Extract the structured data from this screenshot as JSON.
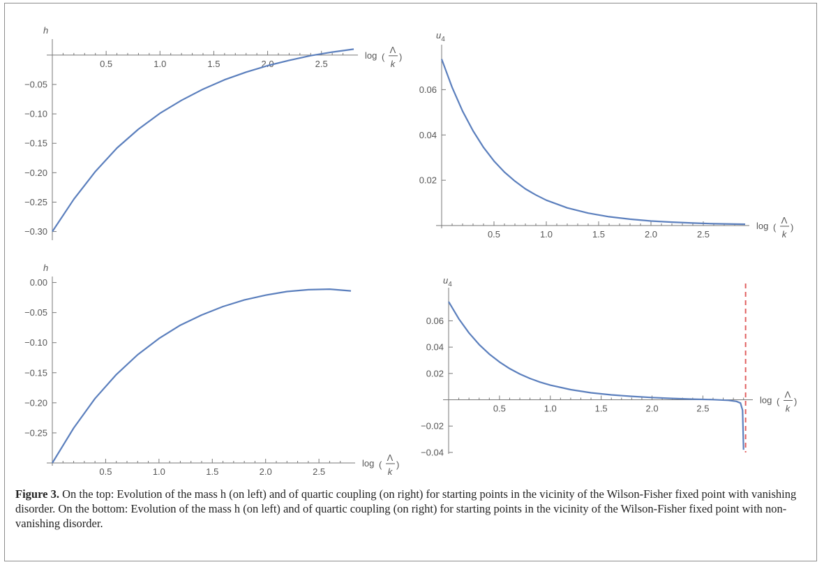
{
  "caption": {
    "label": "Figure 3.",
    "text": " On the top: Evolution of the mass h (on left) and of quartic coupling (on right) for starting points in the vicinity of the Wilson-Fisher fixed point with vanishing disorder. On the bottom: Evolution of the mass h (on left) and of quartic coupling (on right) for starting points in the vicinity of the Wilson-Fisher fixed point with non-vanishing disorder."
  },
  "colors": {
    "curve": "#5b7fbd",
    "divergence_line": "#e06060",
    "axis": "#777777"
  },
  "chart_data": [
    {
      "id": "top-left",
      "type": "line",
      "ylabel": "h",
      "xlabel_prefix": "log",
      "xlabel_num": "Λ",
      "xlabel_den": "k",
      "xlim": [
        0,
        2.8
      ],
      "ylim": [
        -0.31,
        0.02
      ],
      "x_axis_at": 0,
      "xticks": [
        0.5,
        1.0,
        1.5,
        2.0,
        2.5
      ],
      "xtick_labels": [
        "0.5",
        "1.0",
        "1.5",
        "2.0",
        "2.5"
      ],
      "yticks": [
        -0.05,
        -0.1,
        -0.15,
        -0.2,
        -0.25,
        -0.3
      ],
      "ytick_labels": [
        "−0.05",
        "−0.10",
        "−0.15",
        "−0.20",
        "−0.25",
        "−0.30"
      ],
      "series": [
        {
          "x": [
            0,
            0.2,
            0.4,
            0.6,
            0.8,
            1.0,
            1.2,
            1.4,
            1.6,
            1.8,
            2.0,
            2.2,
            2.4,
            2.6,
            2.8
          ],
          "y": [
            -0.3,
            -0.245,
            -0.198,
            -0.158,
            -0.126,
            -0.099,
            -0.077,
            -0.058,
            -0.042,
            -0.029,
            -0.018,
            -0.009,
            -0.001,
            0.005,
            0.01
          ]
        }
      ]
    },
    {
      "id": "top-right",
      "type": "line",
      "ylabel": "u4",
      "xlabel_prefix": "log",
      "xlabel_num": "Λ",
      "xlabel_den": "k",
      "xlim": [
        0,
        2.9
      ],
      "ylim": [
        0,
        0.078
      ],
      "x_axis_at": 0,
      "xticks": [
        0.5,
        1.0,
        1.5,
        2.0,
        2.5
      ],
      "xtick_labels": [
        "0.5",
        "1.0",
        "1.5",
        "2.0",
        "2.5"
      ],
      "yticks": [
        0.02,
        0.04,
        0.06
      ],
      "ytick_labels": [
        "0.02",
        "0.04",
        "0.06"
      ],
      "series": [
        {
          "x": [
            0,
            0.1,
            0.2,
            0.3,
            0.4,
            0.5,
            0.6,
            0.7,
            0.8,
            0.9,
            1.0,
            1.2,
            1.4,
            1.6,
            1.8,
            2.0,
            2.2,
            2.4,
            2.6,
            2.9
          ],
          "y": [
            0.0735,
            0.061,
            0.0505,
            0.0418,
            0.0345,
            0.0285,
            0.0236,
            0.0196,
            0.0162,
            0.0135,
            0.0112,
            0.0078,
            0.0055,
            0.0039,
            0.0028,
            0.002,
            0.0015,
            0.0011,
            0.0008,
            0.0006
          ]
        }
      ]
    },
    {
      "id": "bottom-left",
      "type": "line",
      "ylabel": "h",
      "xlabel_prefix": "log",
      "xlabel_num": "Λ",
      "xlabel_den": "k",
      "xlim": [
        0,
        2.8
      ],
      "ylim": [
        -0.3,
        0.003
      ],
      "x_axis_at": -0.3,
      "xticks": [
        0.5,
        1.0,
        1.5,
        2.0,
        2.5
      ],
      "xtick_labels": [
        "0.5",
        "1.0",
        "1.5",
        "2.0",
        "2.5"
      ],
      "yticks": [
        0.0,
        -0.05,
        -0.1,
        -0.15,
        -0.2,
        -0.25
      ],
      "ytick_labels": [
        "0.00",
        "−0.05",
        "−0.10",
        "−0.15",
        "−0.20",
        "−0.25"
      ],
      "series": [
        {
          "x": [
            0,
            0.2,
            0.4,
            0.6,
            0.8,
            1.0,
            1.2,
            1.4,
            1.6,
            1.8,
            2.0,
            2.2,
            2.4,
            2.6,
            2.8
          ],
          "y": [
            -0.3,
            -0.242,
            -0.193,
            -0.153,
            -0.12,
            -0.093,
            -0.071,
            -0.054,
            -0.04,
            -0.029,
            -0.021,
            -0.015,
            -0.012,
            -0.011,
            -0.014
          ]
        }
      ]
    },
    {
      "id": "bottom-right",
      "type": "line",
      "ylabel": "u4",
      "xlabel_prefix": "log",
      "xlabel_num": "Λ",
      "xlabel_den": "k",
      "xlim": [
        0,
        2.95
      ],
      "ylim": [
        -0.039,
        0.082
      ],
      "x_axis_at": 0,
      "xticks": [
        0.5,
        1.0,
        1.5,
        2.0,
        2.5
      ],
      "xtick_labels": [
        "0.5",
        "1.0",
        "1.5",
        "2.0",
        "2.5"
      ],
      "yticks": [
        0.06,
        0.04,
        0.02,
        -0.02,
        -0.04
      ],
      "ytick_labels": [
        "0.06",
        "0.04",
        "0.02",
        "−0.02",
        "−0.04"
      ],
      "divergence_x": 2.92,
      "series": [
        {
          "x": [
            0,
            0.1,
            0.2,
            0.3,
            0.4,
            0.5,
            0.6,
            0.7,
            0.8,
            0.9,
            1.0,
            1.2,
            1.4,
            1.6,
            1.8,
            2.0,
            2.2,
            2.4,
            2.6,
            2.75,
            2.83,
            2.87,
            2.89,
            2.9
          ],
          "y": [
            0.0745,
            0.0615,
            0.0508,
            0.042,
            0.0347,
            0.0287,
            0.0237,
            0.0196,
            0.0162,
            0.0134,
            0.0111,
            0.0077,
            0.0053,
            0.0037,
            0.0026,
            0.0017,
            0.001,
            0.0005,
            0.0001,
            -0.0004,
            -0.0012,
            -0.0025,
            -0.008,
            -0.038
          ]
        }
      ]
    }
  ]
}
